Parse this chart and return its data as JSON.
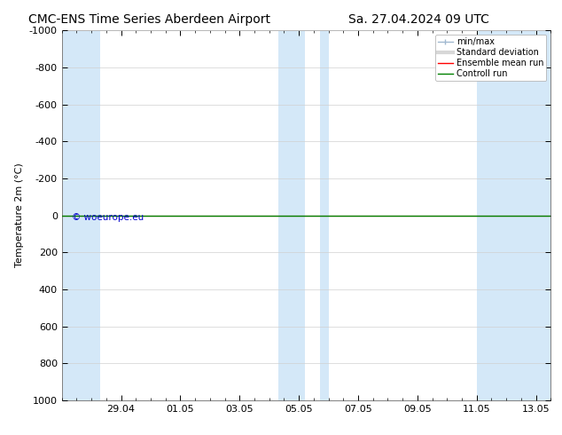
{
  "title_left": "CMC-ENS Time Series Aberdeen Airport",
  "title_right": "Sa. 27.04.2024 09 UTC",
  "ylabel": "Temperature 2m (°C)",
  "watermark": "© woeurope.eu",
  "xlim_start": 0.0,
  "xlim_end": 16.5,
  "ylim_top": -1000,
  "ylim_bottom": 1000,
  "yticks": [
    -1000,
    -800,
    -600,
    -400,
    -200,
    0,
    200,
    400,
    600,
    800,
    1000
  ],
  "blue_bands": [
    [
      0.0,
      1.3
    ],
    [
      7.3,
      8.2
    ],
    [
      8.7,
      9.0
    ],
    [
      14.0,
      16.5
    ]
  ],
  "blue_band_color": "#d4e8f8",
  "background_color": "#ffffff",
  "green_line_color": "#008000",
  "red_line_color": "#ff0000",
  "legend_items": [
    "min/max",
    "Standard deviation",
    "Ensemble mean run",
    "Controll run"
  ],
  "legend_line_colors": [
    "#a0b8d0",
    "#b0b0b0",
    "#ff0000",
    "#008000"
  ],
  "title_fontsize": 10,
  "axis_fontsize": 8,
  "watermark_color": "#0000cc",
  "grid_color": "#d0d0d0",
  "spine_color": "#808080"
}
